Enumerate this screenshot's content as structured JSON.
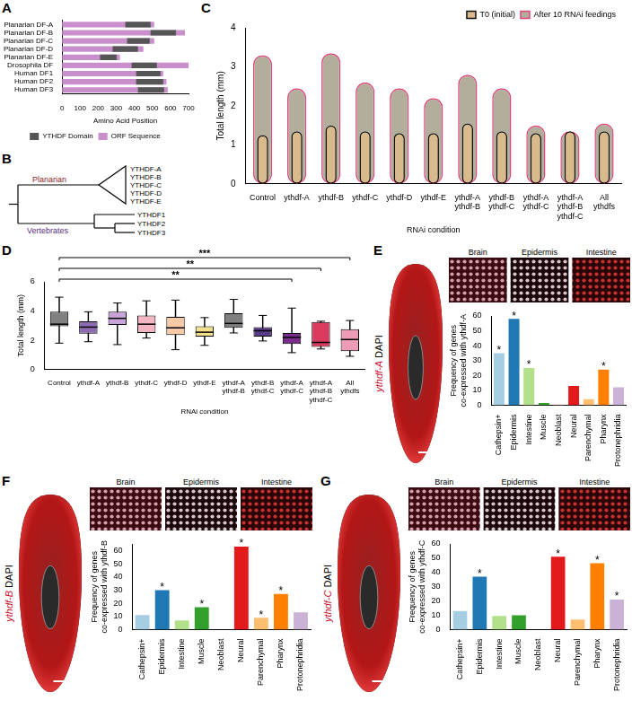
{
  "chart_data": [
    {
      "panel": "A",
      "type": "bar",
      "orientation": "horizontal",
      "categories": [
        "Planarian DF-A",
        "Planarian DF-B",
        "Planarian DF-C",
        "Planarian DF-D",
        "Planarian DF-E",
        "Drosophila DF",
        "Human DF1",
        "Human DF2",
        "Human DF3"
      ],
      "series": [
        {
          "name": "ORF Sequence",
          "color": "#c88fcc",
          "values": [
            510,
            680,
            510,
            450,
            320,
            700,
            560,
            578,
            585
          ]
        },
        {
          "name": "YTHDF Domain",
          "color": "#555555",
          "values": [
            [
              350,
              490
            ],
            [
              490,
              630
            ],
            [
              360,
              485
            ],
            [
              280,
              420
            ],
            [
              210,
              302
            ],
            [
              385,
              525
            ],
            [
              410,
              545
            ],
            [
              410,
              560
            ],
            [
              420,
              565
            ]
          ]
        }
      ],
      "x_label": "Amino Acid Position",
      "xlim": [
        0,
        700
      ],
      "xticks": [
        0,
        100,
        200,
        300,
        400,
        500,
        600,
        700
      ],
      "legend": "bottom",
      "grid": false
    },
    {
      "panel": "C",
      "type": "bar",
      "categories": [
        "Control",
        "ythdf-A",
        "ythdf-B",
        "ythdf-C",
        "ythdf-D",
        "ythdf-E",
        "ythdf-A ythdf-B",
        "ythdf-B ythdf-C",
        "ythdf-A ythdf-C",
        "ythdf-A ythdf-B ythdf-C",
        "All ythdfs"
      ],
      "series": [
        {
          "name": "T0 (initial)",
          "color": "#d9ba8c",
          "values": [
            1.25,
            1.35,
            1.5,
            1.35,
            1.3,
            1.3,
            1.55,
            1.35,
            1.3,
            1.35,
            1.35
          ]
        },
        {
          "name": "After 10 RNAi feedings",
          "color": "#b3ae9c",
          "values": [
            3.3,
            2.45,
            3.35,
            2.6,
            2.45,
            2.2,
            2.8,
            2.45,
            1.5,
            1.35,
            1.55
          ]
        }
      ],
      "x_label": "RNAi condition",
      "y_label": "Total length (mm)",
      "ylim": [
        0,
        4
      ],
      "yticks": [
        0,
        1,
        2,
        3,
        4
      ],
      "legend": "top right",
      "grid": false
    },
    {
      "panel": "D",
      "type": "box",
      "categories": [
        "Control",
        "ythdf-A",
        "ythdf-B",
        "ythdf-C",
        "ythdf-D",
        "ythdf-E",
        "ythdf-A ythdf-B",
        "ythdf-B ythdf-C",
        "ythdf-A ythdf-C",
        "ythdf-A ythdf-B ythdf-C",
        "All ythdfs"
      ],
      "colors": [
        "#808080",
        "#8c6bb1",
        "#c7a3d9",
        "#f4b6c2",
        "#f9c9a8",
        "#f3e08c",
        "#7f7f7f",
        "#5b3a8a",
        "#7b2d8e",
        "#d93a5e",
        "#ee9bb8"
      ],
      "boxes": [
        {
          "min": 1.8,
          "q1": 2.95,
          "median": 3.1,
          "q3": 3.95,
          "max": 4.95
        },
        {
          "min": 1.9,
          "q1": 2.45,
          "median": 2.9,
          "q3": 3.3,
          "max": 3.95
        },
        {
          "min": 1.7,
          "q1": 3.05,
          "median": 3.5,
          "q3": 3.95,
          "max": 4.55
        },
        {
          "min": 2.15,
          "q1": 2.5,
          "median": 3.1,
          "q3": 3.7,
          "max": 4.7
        },
        {
          "min": 1.35,
          "q1": 2.35,
          "median": 2.85,
          "q3": 3.6,
          "max": 4.75
        },
        {
          "min": 1.65,
          "q1": 2.25,
          "median": 2.55,
          "q3": 2.95,
          "max": 3.55
        },
        {
          "min": 2.5,
          "q1": 2.85,
          "median": 3.15,
          "q3": 3.85,
          "max": 4.8
        },
        {
          "min": 1.95,
          "q1": 2.25,
          "median": 2.65,
          "q3": 2.9,
          "max": 3.7
        },
        {
          "min": 1.15,
          "q1": 1.75,
          "median": 2.2,
          "q3": 2.5,
          "max": 4.2
        },
        {
          "min": 1.4,
          "q1": 1.55,
          "median": 1.85,
          "q3": 3.25,
          "max": 3.3
        },
        {
          "min": 0.9,
          "q1": 1.25,
          "median": 2.05,
          "q3": 2.75,
          "max": 3.35
        }
      ],
      "comparisons": [
        {
          "from": "Control",
          "to": "ythdf-A ythdf-C",
          "label": "**"
        },
        {
          "from": "Control",
          "to": "ythdf-A ythdf-B ythdf-C",
          "label": "**"
        },
        {
          "from": "Control",
          "to": "All ythdfs",
          "label": "***"
        }
      ],
      "x_label": "RNAi condition",
      "y_label": "Total length (mm)",
      "ylim": [
        0,
        6
      ],
      "yticks": [
        0,
        2,
        4,
        6
      ],
      "grid": false
    },
    {
      "panel": "E",
      "type": "bar",
      "categories": [
        "Cathepsin+",
        "Epidermis",
        "Intestine",
        "Muscle",
        "Neoblast",
        "Neural",
        "Parenchymal",
        "Pharynx",
        "Protonephridia"
      ],
      "values": [
        35,
        58,
        25,
        1.5,
        0.5,
        13,
        4,
        24,
        12
      ],
      "colors": [
        "#a6cee3",
        "#1f78b4",
        "#b2df8a",
        "#33a02c",
        "#fb9a99",
        "#e31a1c",
        "#fdbf6f",
        "#ff7f00",
        "#cab2d6"
      ],
      "significance": [
        "*",
        "*",
        "*",
        null,
        null,
        null,
        null,
        "*",
        null
      ],
      "y_label": "Frequency of genes co-expressed with ythdf-A",
      "ylim": [
        0,
        60
      ],
      "yticks": [
        0,
        10,
        20,
        30,
        40,
        50,
        60
      ],
      "grid": false,
      "image": {
        "stain": "ythdf-A",
        "counterstain": "DAPI",
        "insets": [
          "Brain",
          "Epidermis",
          "Intestine"
        ]
      }
    },
    {
      "panel": "F",
      "type": "bar",
      "categories": [
        "Cathepsin+",
        "Epidermis",
        "Intestine",
        "Muscle",
        "Neoblast",
        "Neural",
        "Parenchymal",
        "Pharynx",
        "Protonephridia"
      ],
      "values": [
        11,
        30,
        7,
        17,
        0,
        63,
        9,
        27,
        13
      ],
      "colors": [
        "#a6cee3",
        "#1f78b4",
        "#b2df8a",
        "#33a02c",
        "#fb9a99",
        "#e31a1c",
        "#fdbf6f",
        "#ff7f00",
        "#cab2d6"
      ],
      "significance": [
        null,
        "*",
        null,
        "*",
        null,
        "*",
        "*",
        "*",
        null
      ],
      "y_label": "Frequency of genes co-expressed with ythdf-B",
      "ylim": [
        0,
        65
      ],
      "yticks": [
        0,
        10,
        20,
        30,
        40,
        50,
        60
      ],
      "grid": false,
      "image": {
        "stain": "ythdf-B",
        "counterstain": "DAPI",
        "insets": [
          "Brain",
          "Epidermis",
          "Intestine"
        ]
      }
    },
    {
      "panel": "G",
      "type": "bar",
      "categories": [
        "Cathepsin+",
        "Epidermis",
        "Intestine",
        "Muscle",
        "Neoblast",
        "Neural",
        "Parenchymal",
        "Pharynx",
        "Protonephridia"
      ],
      "values": [
        13,
        37,
        9.5,
        10,
        0,
        51,
        7,
        46.5,
        21
      ],
      "colors": [
        "#a6cee3",
        "#1f78b4",
        "#b2df8a",
        "#33a02c",
        "#fb9a99",
        "#e31a1c",
        "#fdbf6f",
        "#ff7f00",
        "#cab2d6"
      ],
      "significance": [
        null,
        "*",
        null,
        null,
        null,
        "*",
        null,
        "*",
        "*"
      ],
      "y_label": "Frequency of genes co-expressed with ythdf-C",
      "ylim": [
        0,
        60
      ],
      "yticks": [
        0,
        10,
        20,
        30,
        40,
        50,
        60
      ],
      "grid": false,
      "image": {
        "stain": "ythdf-C",
        "counterstain": "DAPI",
        "insets": [
          "Brain",
          "Epidermis",
          "Intestine"
        ]
      }
    }
  ],
  "diagram": {
    "panel": "B",
    "clades": [
      {
        "name": "Planarian",
        "color": "#8b1a2b",
        "leaves": [
          "YTHDF-A",
          "YTHDF-B",
          "YTHDF-C",
          "YTHDF-D",
          "YTHDF-E"
        ]
      },
      {
        "name": "Vertebrates",
        "color": "#5b2c83",
        "leaves": [
          "YTHDF1",
          "YTHDF2",
          "YTHDF3"
        ]
      }
    ]
  }
}
